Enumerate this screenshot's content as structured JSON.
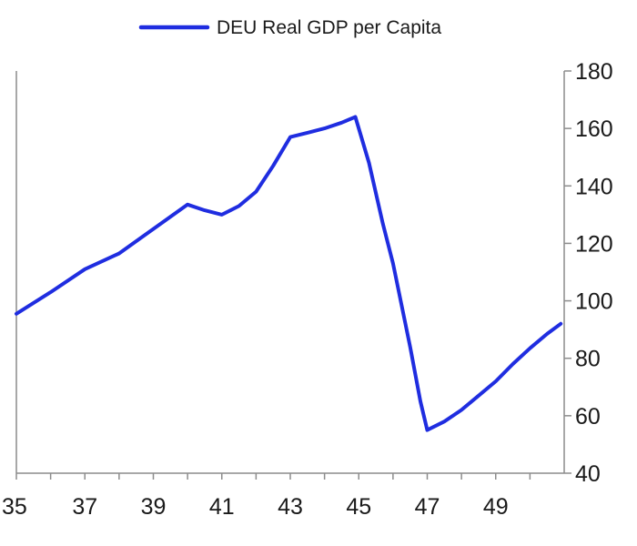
{
  "chart_data": {
    "type": "line",
    "title": "",
    "xlabel": "",
    "ylabel": "",
    "xlim": [
      1935,
      1951
    ],
    "ylim": [
      40,
      180
    ],
    "x_ticks": [
      1935,
      1937,
      1939,
      1941,
      1943,
      1945,
      1947,
      1949
    ],
    "x_tick_labels": [
      "35",
      "37",
      "39",
      "41",
      "43",
      "45",
      "47",
      "49"
    ],
    "y_ticks": [
      40,
      60,
      80,
      100,
      120,
      140,
      160,
      180
    ],
    "y_tick_labels": [
      "40",
      "60",
      "80",
      "100",
      "120",
      "140",
      "160",
      "180"
    ],
    "y_axis_side": "right",
    "grid": false,
    "legend": {
      "position": "top-center",
      "entries": [
        "DEU Real GDP per Capita"
      ]
    },
    "series": [
      {
        "name": "DEU Real GDP per Capita",
        "color": "#1f2de0",
        "x": [
          1935.0,
          1936.0,
          1937.0,
          1938.0,
          1939.0,
          1940.0,
          1940.5,
          1941.0,
          1941.5,
          1942.0,
          1942.5,
          1943.0,
          1943.5,
          1944.0,
          1944.5,
          1944.9,
          1945.3,
          1945.7,
          1946.0,
          1946.5,
          1946.8,
          1947.0,
          1947.5,
          1948.0,
          1948.5,
          1949.0,
          1949.5,
          1950.0,
          1950.5,
          1950.9
        ],
        "y": [
          95.5,
          103,
          111,
          116.5,
          125,
          133.5,
          131.5,
          130,
          133,
          138,
          147,
          157,
          158.5,
          160,
          162,
          164,
          148,
          127,
          113,
          84,
          65,
          55,
          58,
          62,
          67,
          72,
          78,
          83.5,
          88.5,
          92
        ]
      }
    ]
  }
}
